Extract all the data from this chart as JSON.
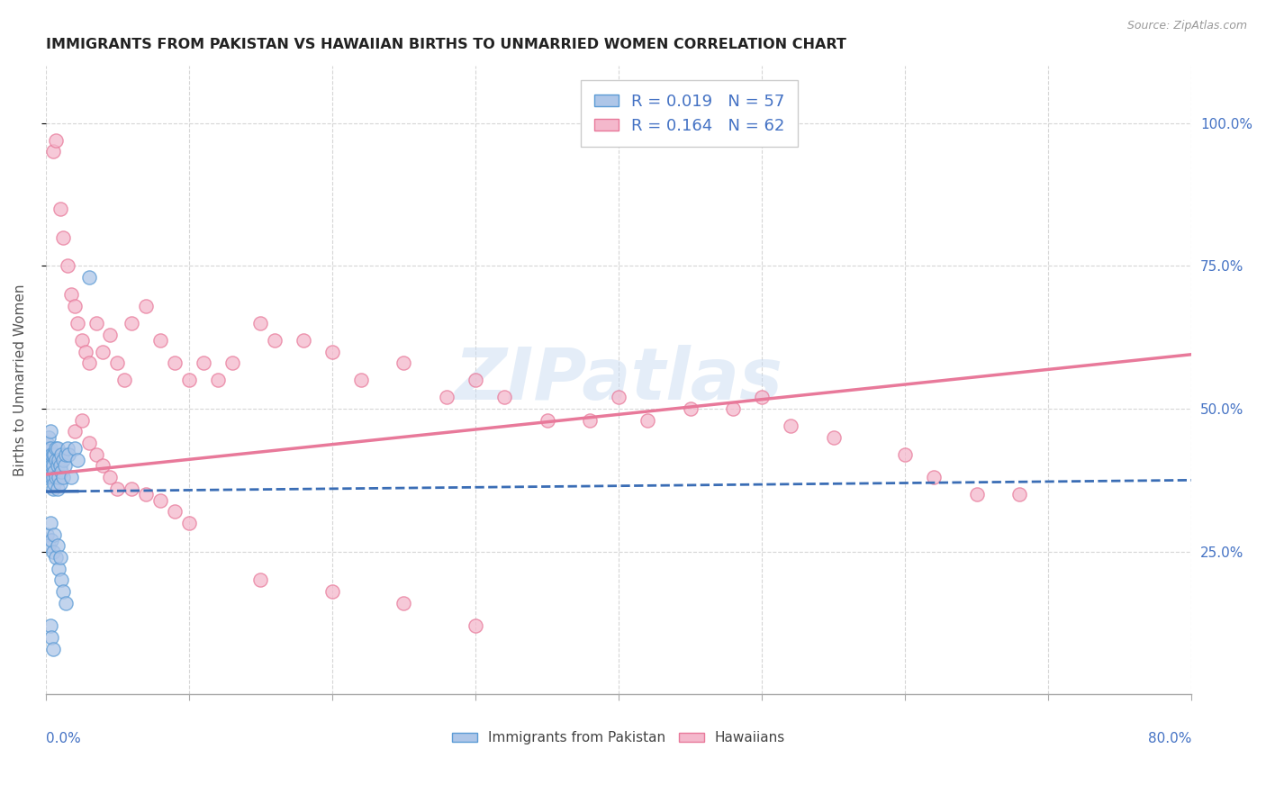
{
  "title": "IMMIGRANTS FROM PAKISTAN VS HAWAIIAN BIRTHS TO UNMARRIED WOMEN CORRELATION CHART",
  "source": "Source: ZipAtlas.com",
  "ylabel": "Births to Unmarried Women",
  "right_yticks": [
    0.25,
    0.5,
    0.75,
    1.0
  ],
  "right_yticklabels": [
    "25.0%",
    "50.0%",
    "75.0%",
    "100.0%"
  ],
  "watermark_text": "ZIPatlas",
  "legend_label1": "Immigrants from Pakistan",
  "legend_label2": "Hawaiians",
  "blue_face_color": "#aec6e8",
  "blue_edge_color": "#5b9bd5",
  "pink_face_color": "#f4b8cc",
  "pink_edge_color": "#e8799a",
  "blue_line_color": "#3a6db5",
  "pink_line_color": "#e8799a",
  "background_color": "#ffffff",
  "grid_color": "#cccccc",
  "title_color": "#222222",
  "axis_label_color": "#4472c4",
  "xlim": [
    0.0,
    0.8
  ],
  "ylim": [
    0.0,
    1.1
  ],
  "blue_scatter_x": [
    0.001,
    0.001,
    0.002,
    0.002,
    0.002,
    0.003,
    0.003,
    0.003,
    0.003,
    0.004,
    0.004,
    0.004,
    0.005,
    0.005,
    0.005,
    0.005,
    0.006,
    0.006,
    0.006,
    0.007,
    0.007,
    0.007,
    0.008,
    0.008,
    0.008,
    0.009,
    0.009,
    0.01,
    0.01,
    0.011,
    0.011,
    0.012,
    0.012,
    0.013,
    0.014,
    0.015,
    0.016,
    0.018,
    0.02,
    0.022,
    0.001,
    0.002,
    0.003,
    0.004,
    0.005,
    0.006,
    0.007,
    0.008,
    0.009,
    0.01,
    0.011,
    0.012,
    0.014,
    0.003,
    0.004,
    0.005,
    0.03
  ],
  "blue_scatter_y": [
    0.38,
    0.44,
    0.4,
    0.43,
    0.45,
    0.39,
    0.41,
    0.43,
    0.46,
    0.38,
    0.4,
    0.42,
    0.36,
    0.38,
    0.4,
    0.42,
    0.37,
    0.39,
    0.42,
    0.38,
    0.41,
    0.43,
    0.36,
    0.4,
    0.43,
    0.38,
    0.41,
    0.37,
    0.4,
    0.39,
    0.42,
    0.38,
    0.41,
    0.4,
    0.42,
    0.43,
    0.42,
    0.38,
    0.43,
    0.41,
    0.28,
    0.26,
    0.3,
    0.27,
    0.25,
    0.28,
    0.24,
    0.26,
    0.22,
    0.24,
    0.2,
    0.18,
    0.16,
    0.12,
    0.1,
    0.08,
    0.73
  ],
  "pink_scatter_x": [
    0.005,
    0.007,
    0.01,
    0.012,
    0.015,
    0.018,
    0.02,
    0.022,
    0.025,
    0.028,
    0.03,
    0.035,
    0.04,
    0.045,
    0.05,
    0.055,
    0.06,
    0.07,
    0.08,
    0.09,
    0.1,
    0.11,
    0.12,
    0.13,
    0.15,
    0.16,
    0.18,
    0.2,
    0.22,
    0.25,
    0.28,
    0.3,
    0.32,
    0.35,
    0.38,
    0.4,
    0.42,
    0.45,
    0.48,
    0.5,
    0.52,
    0.55,
    0.6,
    0.62,
    0.65,
    0.68,
    0.02,
    0.025,
    0.03,
    0.035,
    0.04,
    0.045,
    0.05,
    0.06,
    0.07,
    0.08,
    0.09,
    0.1,
    0.15,
    0.2,
    0.25,
    0.3
  ],
  "pink_scatter_y": [
    0.95,
    0.97,
    0.85,
    0.8,
    0.75,
    0.7,
    0.68,
    0.65,
    0.62,
    0.6,
    0.58,
    0.65,
    0.6,
    0.63,
    0.58,
    0.55,
    0.65,
    0.68,
    0.62,
    0.58,
    0.55,
    0.58,
    0.55,
    0.58,
    0.65,
    0.62,
    0.62,
    0.6,
    0.55,
    0.58,
    0.52,
    0.55,
    0.52,
    0.48,
    0.48,
    0.52,
    0.48,
    0.5,
    0.5,
    0.52,
    0.47,
    0.45,
    0.42,
    0.38,
    0.35,
    0.35,
    0.46,
    0.48,
    0.44,
    0.42,
    0.4,
    0.38,
    0.36,
    0.36,
    0.35,
    0.34,
    0.32,
    0.3,
    0.2,
    0.18,
    0.16,
    0.12
  ],
  "blue_trend_x0": 0.0,
  "blue_trend_x1": 0.8,
  "blue_trend_y0": 0.355,
  "blue_trend_y1": 0.375,
  "pink_trend_x0": 0.0,
  "pink_trend_x1": 0.8,
  "pink_trend_y0": 0.385,
  "pink_trend_y1": 0.595
}
